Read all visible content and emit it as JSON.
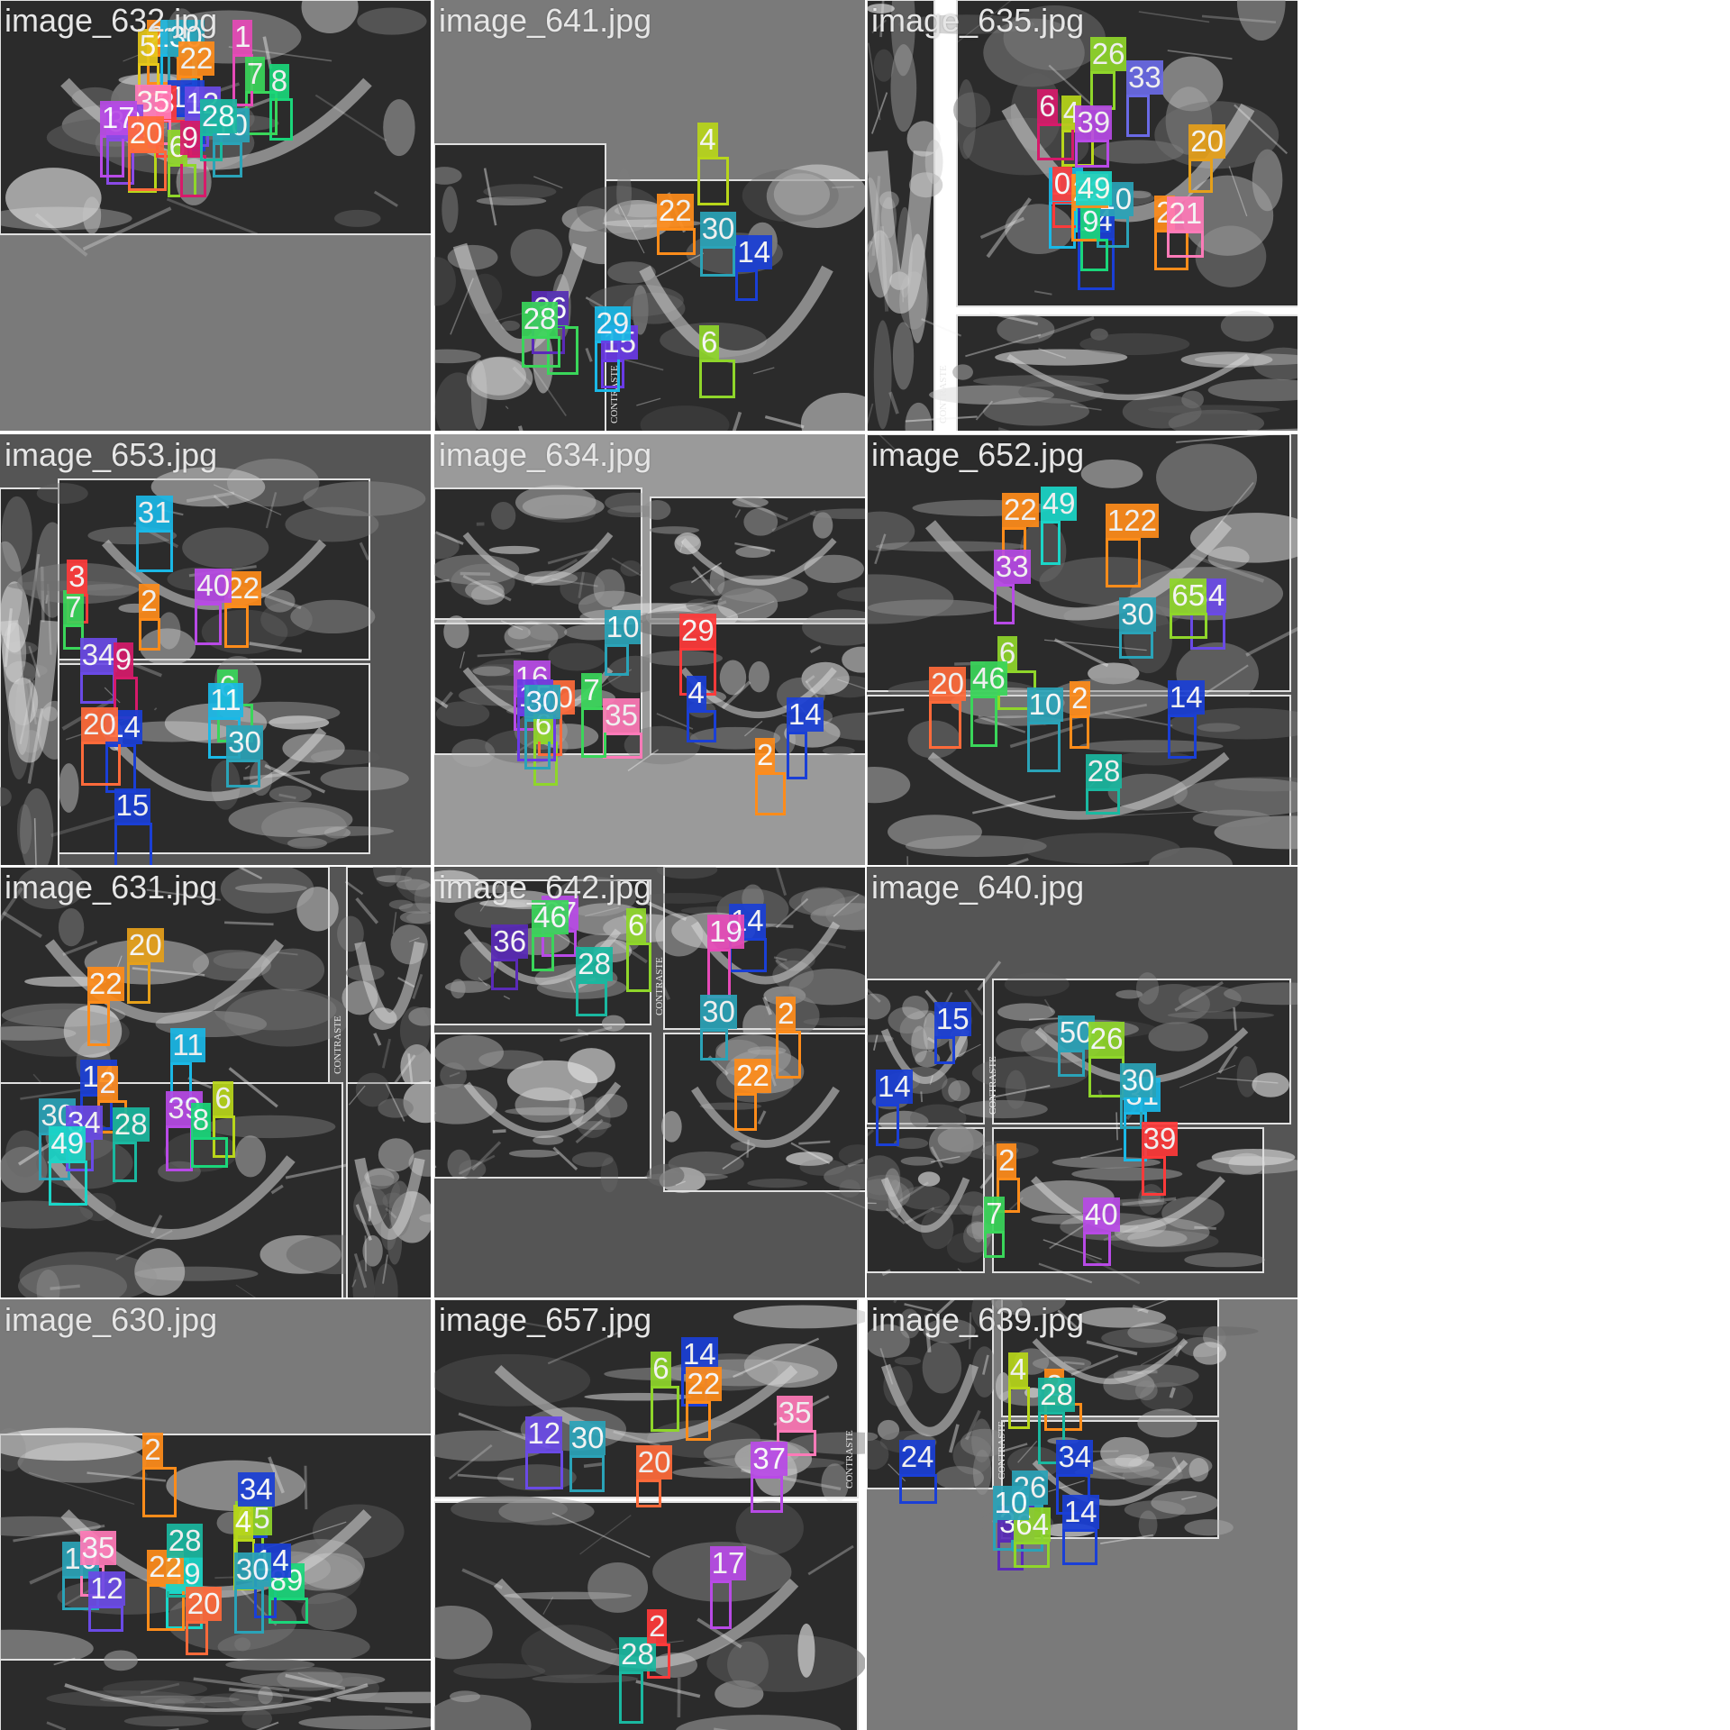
{
  "tiles": [
    {
      "label": "image_632.jpg",
      "bg": "#7a7a7a",
      "boxes": [
        {
          "n": "6",
          "c": "#8fd62a"
        },
        {
          "n": "2",
          "c": "#ff8c1a"
        },
        {
          "n": "10",
          "c": "#2aa3b8"
        },
        {
          "n": "14",
          "c": "#1a3fd6"
        },
        {
          "n": "4",
          "c": "#b8d61a"
        },
        {
          "n": "3",
          "c": "#ff3a3a"
        },
        {
          "n": "8",
          "c": "#1ad67a"
        },
        {
          "n": "9",
          "c": "#d61a6a"
        },
        {
          "n": "11",
          "c": "#1ab8e6"
        },
        {
          "n": "12",
          "c": "#6a4ae6"
        },
        {
          "n": "5",
          "c": "#e6c81a"
        },
        {
          "n": "35",
          "c": "#ff7ab8"
        },
        {
          "n": "33",
          "c": "#8a4ae6"
        },
        {
          "n": "30",
          "c": "#2aa3b8"
        },
        {
          "n": "22",
          "c": "#ff8c1a"
        },
        {
          "n": "28",
          "c": "#1ab8a0"
        },
        {
          "n": "7",
          "c": "#3ad65a"
        },
        {
          "n": "17",
          "c": "#b84ae6"
        },
        {
          "n": "20",
          "c": "#ff6a3a"
        },
        {
          "n": "1",
          "c": "#e64ab8"
        }
      ]
    },
    {
      "label": "image_641.jpg",
      "bg": "#7a7a7a",
      "side": "CONTRASTE",
      "boxes": [
        {
          "n": "15",
          "c": "#6a3ae6"
        },
        {
          "n": "14",
          "c": "#1a3fd6"
        },
        {
          "n": "22",
          "c": "#ff8c1a"
        },
        {
          "n": "6",
          "c": "#8fd62a"
        },
        {
          "n": "5",
          "c": "#3ad65a"
        },
        {
          "n": "4",
          "c": "#b8d61a"
        },
        {
          "n": "36",
          "c": "#5a2ab8"
        },
        {
          "n": "29",
          "c": "#1ab8e6"
        },
        {
          "n": "30",
          "c": "#2aa3b8"
        },
        {
          "n": "28",
          "c": "#3ad65a"
        }
      ]
    },
    {
      "label": "image_635.jpg",
      "bg": "#ffffff",
      "side": "CONTRASTE",
      "boxes": [
        {
          "n": "14",
          "c": "#1a3fd6"
        },
        {
          "n": "10",
          "c": "#2aa3b8"
        },
        {
          "n": "11",
          "c": "#1ab8e6"
        },
        {
          "n": "2",
          "c": "#ff8c1a"
        },
        {
          "n": "0",
          "c": "#ff3a3a"
        },
        {
          "n": "9",
          "c": "#1ad67a"
        },
        {
          "n": "33",
          "c": "#6a6ae6"
        },
        {
          "n": "22",
          "c": "#ff8c1a"
        },
        {
          "n": "21",
          "c": "#ff7ab8"
        },
        {
          "n": "4",
          "c": "#b8d61a"
        },
        {
          "n": "39",
          "c": "#b84ae6"
        },
        {
          "n": "6",
          "c": "#d61a6a"
        },
        {
          "n": "49",
          "c": "#1ad6c8"
        },
        {
          "n": "20",
          "c": "#e6a01a"
        },
        {
          "n": "26",
          "c": "#8fd62a"
        }
      ]
    },
    {
      "label": "image_653.jpg",
      "bg": "#555555",
      "boxes": [
        {
          "n": "14",
          "c": "#1a3fd6"
        },
        {
          "n": "2",
          "c": "#ff8c1a"
        },
        {
          "n": "6",
          "c": "#3ad65a"
        },
        {
          "n": "11",
          "c": "#1ab8e6"
        },
        {
          "n": "34",
          "c": "#6a4ae6"
        },
        {
          "n": "22",
          "c": "#ff8c1a"
        },
        {
          "n": "30",
          "c": "#2aa3b8"
        },
        {
          "n": "9",
          "c": "#d61a6a"
        },
        {
          "n": "15",
          "c": "#1a3fd6"
        },
        {
          "n": "40",
          "c": "#b84ae6"
        },
        {
          "n": "7",
          "c": "#3ad65a"
        },
        {
          "n": "31",
          "c": "#1ab8e6"
        },
        {
          "n": "20",
          "c": "#ff6a3a"
        },
        {
          "n": "3",
          "c": "#ff3a3a"
        }
      ]
    },
    {
      "label": "image_634.jpg",
      "bg": "#9a9a9a",
      "boxes": [
        {
          "n": "6",
          "c": "#8fd62a"
        },
        {
          "n": "4",
          "c": "#1a3fd6"
        },
        {
          "n": "10",
          "c": "#2aa3b8"
        },
        {
          "n": "2",
          "c": "#ff8c1a"
        },
        {
          "n": "16",
          "c": "#b84ae6"
        },
        {
          "n": "35",
          "c": "#ff7ab8"
        },
        {
          "n": "20",
          "c": "#ff6a3a"
        },
        {
          "n": "7",
          "c": "#3ad65a"
        },
        {
          "n": "15",
          "c": "#6a3ae6"
        },
        {
          "n": "14",
          "c": "#1a3fd6"
        },
        {
          "n": "30",
          "c": "#2aa3b8"
        },
        {
          "n": "29",
          "c": "#ff3a3a"
        }
      ]
    },
    {
      "label": "image_652.jpg",
      "bg": "#555555",
      "boxes": [
        {
          "n": "6",
          "c": "#8fd62a"
        },
        {
          "n": "2",
          "c": "#ff8c1a"
        },
        {
          "n": "10",
          "c": "#2aa3b8"
        },
        {
          "n": "14",
          "c": "#1a3fd6"
        },
        {
          "n": "33",
          "c": "#b84ae6"
        },
        {
          "n": "34",
          "c": "#6a4ae6"
        },
        {
          "n": "30",
          "c": "#2aa3b8"
        },
        {
          "n": "22",
          "c": "#ff8c1a"
        },
        {
          "n": "49",
          "c": "#1ad6c8"
        },
        {
          "n": "28",
          "c": "#1ab8a0"
        },
        {
          "n": "20",
          "c": "#ff6a3a"
        },
        {
          "n": "65",
          "c": "#8fd62a"
        },
        {
          "n": "46",
          "c": "#3ad65a"
        },
        {
          "n": "122",
          "c": "#ff8c1a"
        }
      ]
    },
    {
      "label": "image_631.jpg",
      "bg": "#555555",
      "side": "CONTRASTE",
      "boxes": [
        {
          "n": "14",
          "c": "#1a3fd6"
        },
        {
          "n": "2",
          "c": "#ff8c1a"
        },
        {
          "n": "6",
          "c": "#b8d61a"
        },
        {
          "n": "39",
          "c": "#b84ae6"
        },
        {
          "n": "22",
          "c": "#ff8c1a"
        },
        {
          "n": "30",
          "c": "#2aa3b8"
        },
        {
          "n": "28",
          "c": "#1ab8a0"
        },
        {
          "n": "20",
          "c": "#e6a01a"
        },
        {
          "n": "11",
          "c": "#1ab8e6"
        },
        {
          "n": "34",
          "c": "#6a4ae6"
        },
        {
          "n": "49",
          "c": "#1ad6c8"
        },
        {
          "n": "8",
          "c": "#1ad67a"
        }
      ]
    },
    {
      "label": "image_642.jpg",
      "bg": "#555555",
      "side": "CONTRASTE",
      "boxes": [
        {
          "n": "36",
          "c": "#5a2ab8"
        },
        {
          "n": "14",
          "c": "#1a3fd6"
        },
        {
          "n": "28",
          "c": "#1ab8a0"
        },
        {
          "n": "2",
          "c": "#ff8c1a"
        },
        {
          "n": "6",
          "c": "#8fd62a"
        },
        {
          "n": "30",
          "c": "#2aa3b8"
        },
        {
          "n": "37",
          "c": "#b84ae6"
        },
        {
          "n": "19",
          "c": "#e64ab8"
        },
        {
          "n": "22",
          "c": "#ff8c1a"
        },
        {
          "n": "46",
          "c": "#3ad65a"
        }
      ]
    },
    {
      "label": "image_640.jpg",
      "bg": "#555555",
      "side": "CONTRASTE",
      "boxes": [
        {
          "n": "15",
          "c": "#1a3fd6"
        },
        {
          "n": "40",
          "c": "#b84ae6"
        },
        {
          "n": "7",
          "c": "#3ad65a"
        },
        {
          "n": "31",
          "c": "#1ab8e6"
        },
        {
          "n": "50",
          "c": "#2aa3b8"
        },
        {
          "n": "14",
          "c": "#1a3fd6"
        },
        {
          "n": "39",
          "c": "#ff3a3a"
        },
        {
          "n": "30",
          "c": "#2aa3b8"
        },
        {
          "n": "2",
          "c": "#ff8c1a"
        },
        {
          "n": "26",
          "c": "#8fd62a"
        }
      ]
    },
    {
      "label": "image_630.jpg",
      "bg": "#7a7a7a",
      "boxes": [
        {
          "n": "2",
          "c": "#ff8c1a"
        },
        {
          "n": "10",
          "c": "#2aa3b8"
        },
        {
          "n": "65",
          "c": "#8fd62a"
        },
        {
          "n": "4",
          "c": "#b8d61a"
        },
        {
          "n": "34",
          "c": "#1a3fd6"
        },
        {
          "n": "89",
          "c": "#1ad67a"
        },
        {
          "n": "12",
          "c": "#6a4ae6"
        },
        {
          "n": "14",
          "c": "#1a3fd6"
        },
        {
          "n": "35",
          "c": "#ff7ab8"
        },
        {
          "n": "30",
          "c": "#2aa3b8"
        },
        {
          "n": "49",
          "c": "#1ad6c8"
        },
        {
          "n": "22",
          "c": "#ff8c1a"
        },
        {
          "n": "28",
          "c": "#1ab8a0"
        },
        {
          "n": "20",
          "c": "#ff6a3a"
        }
      ]
    },
    {
      "label": "image_657.jpg",
      "bg": "#ffffff",
      "side": "CONTRASTE",
      "boxes": [
        {
          "n": "6",
          "c": "#8fd62a"
        },
        {
          "n": "14",
          "c": "#1a3fd6"
        },
        {
          "n": "12",
          "c": "#6a4ae6"
        },
        {
          "n": "35",
          "c": "#ff7ab8"
        },
        {
          "n": "37",
          "c": "#b84ae6"
        },
        {
          "n": "30",
          "c": "#2aa3b8"
        },
        {
          "n": "22",
          "c": "#ff8c1a"
        },
        {
          "n": "17",
          "c": "#b84ae6"
        },
        {
          "n": "20",
          "c": "#ff6a3a"
        },
        {
          "n": "28",
          "c": "#1ab8a0"
        },
        {
          "n": "2",
          "c": "#ff3a3a"
        }
      ]
    },
    {
      "label": "image_639.jpg",
      "bg": "#7a7a7a",
      "side": "CONTRASTE",
      "boxes": [
        {
          "n": "4",
          "c": "#b8d61a"
        },
        {
          "n": "14",
          "c": "#1a3fd6"
        },
        {
          "n": "36",
          "c": "#5a2ab8"
        },
        {
          "n": "2",
          "c": "#ff8c1a"
        },
        {
          "n": "34",
          "c": "#1a3fd6"
        },
        {
          "n": "26",
          "c": "#2aa3b8"
        },
        {
          "n": "64",
          "c": "#8fd62a"
        },
        {
          "n": "10",
          "c": "#2aa3b8"
        },
        {
          "n": "28",
          "c": "#1ab8a0"
        },
        {
          "n": "24",
          "c": "#1a3fd6"
        }
      ]
    }
  ]
}
